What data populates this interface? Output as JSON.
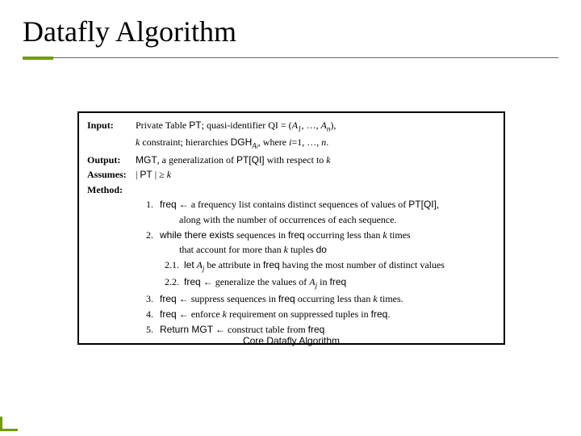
{
  "colors": {
    "accent": "#739c00",
    "text": "#000000",
    "border": "#000000",
    "rule": "#666666",
    "background": "#ffffff"
  },
  "typography": {
    "title_family": "Times New Roman",
    "title_size_pt": 28,
    "body_size_pt": 10,
    "caption_family": "Arial",
    "caption_size_pt": 10
  },
  "title": "Datafly Algorithm",
  "caption": "Core Datafly Algorithm",
  "algo": {
    "input": {
      "label": "Input:",
      "line1_a": "Private Table ",
      "line1_b": "PT",
      "line1_c": "; quasi-identifier QI = (",
      "line1_d": "A",
      "line1_d_sub": "1",
      "line1_e": ", …, ",
      "line1_f": "A",
      "line1_f_sub": "n",
      "line1_g": "),",
      "line2_a": "k",
      "line2_b": " constraint; hierarchies ",
      "line2_c": "DGH",
      "line2_c_sub": "A",
      "line2_c_sub2": "i",
      "line2_d": ", where ",
      "line2_e": "i",
      "line2_f": "=1, …, ",
      "line2_g": "n",
      "line2_h": "."
    },
    "output": {
      "label": "Output:",
      "a": "MGT",
      "b": ", a generalization of ",
      "c": "PT[QI]",
      "d": " with respect to ",
      "e": "k"
    },
    "assumes": {
      "label": "Assumes:",
      "a": "| ",
      "b": "PT",
      "c": " | ≥ ",
      "d": "k"
    },
    "method_label": "Method:",
    "steps": {
      "s1": {
        "n": "1.",
        "a": "freq",
        "b": " ← a frequency list contains distinct sequences of values of ",
        "c": "PT[QI]",
        "d": ",",
        "cont": "along with the number of occurrences of each sequence."
      },
      "s2": {
        "n": "2.",
        "a": "while there exists",
        "b": " sequences in ",
        "c": "freq",
        "d": " occurring less than ",
        "e": "k",
        "f": " times",
        "cont_a": "that account for more than ",
        "cont_b": "k",
        "cont_c": " tuples ",
        "cont_d": "do"
      },
      "s21": {
        "n": "2.1.",
        "a": "let",
        "b": " A",
        "b_sub": "j",
        "c": " be attribute in ",
        "d": "freq",
        "e": " having the most number of distinct values"
      },
      "s22": {
        "n": "2.2.",
        "a": "freq",
        "b": " ← generalize the values of  ",
        "c": "A",
        "c_sub": "j",
        "d": " in ",
        "e": "freq"
      },
      "s3": {
        "n": "3.",
        "a": "freq",
        "b": " ← suppress sequences in ",
        "c": "freq",
        "d": " occurring less than ",
        "e": "k",
        "f": " times."
      },
      "s4": {
        "n": "4.",
        "a": "freq",
        "b": " ← enforce ",
        "c": "k",
        "d": " requirement on suppressed tuples in ",
        "e": "freq",
        "f": "."
      },
      "s5": {
        "n": "5.",
        "a": "Return ",
        "b": "MGT",
        "c": " ← construct table from ",
        "d": "freq"
      }
    }
  }
}
